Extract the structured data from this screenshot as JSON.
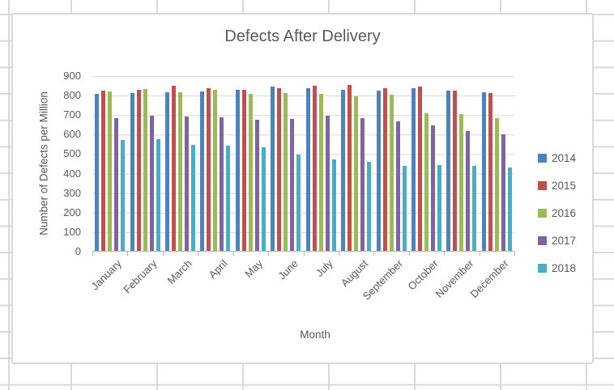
{
  "colors": {
    "text": "#595959",
    "plot_gridline": "#d9d9d9",
    "axis_line": "#b3b3b3",
    "sheet_gridline": "#d9d9d9"
  },
  "chart_data": {
    "type": "bar",
    "title": "Defects After Delivery",
    "xlabel": "Month",
    "ylabel": "Number of Defects per Million",
    "ylim": [
      0,
      900
    ],
    "ytick_step": 100,
    "yticks": [
      900,
      800,
      700,
      600,
      500,
      400,
      300,
      200,
      100,
      0
    ],
    "grid": "horizontal",
    "legend_position": "right",
    "categories": [
      "January",
      "February",
      "March",
      "April",
      "May",
      "June",
      "July",
      "August",
      "September",
      "October",
      "November",
      "December"
    ],
    "series": [
      {
        "name": "2014",
        "color": "#4F81BD",
        "values": [
          810,
          812,
          815,
          822,
          830,
          846,
          839,
          829,
          826,
          839,
          825,
          818
        ]
      },
      {
        "name": "2015",
        "color": "#C0504D",
        "values": [
          827,
          830,
          848,
          839,
          828,
          839,
          848,
          855,
          836,
          846,
          826,
          814
        ]
      },
      {
        "name": "2016",
        "color": "#9BBB59",
        "values": [
          820,
          834,
          818,
          828,
          807,
          812,
          810,
          797,
          804,
          710,
          706,
          685
        ]
      },
      {
        "name": "2017",
        "color": "#8064A2",
        "values": [
          683,
          695,
          690,
          687,
          673,
          680,
          695,
          684,
          666,
          644,
          616,
          602
        ]
      },
      {
        "name": "2018",
        "color": "#4BACC6",
        "values": [
          570,
          574,
          545,
          540,
          532,
          494,
          471,
          458,
          438,
          442,
          437,
          431
        ]
      }
    ]
  }
}
